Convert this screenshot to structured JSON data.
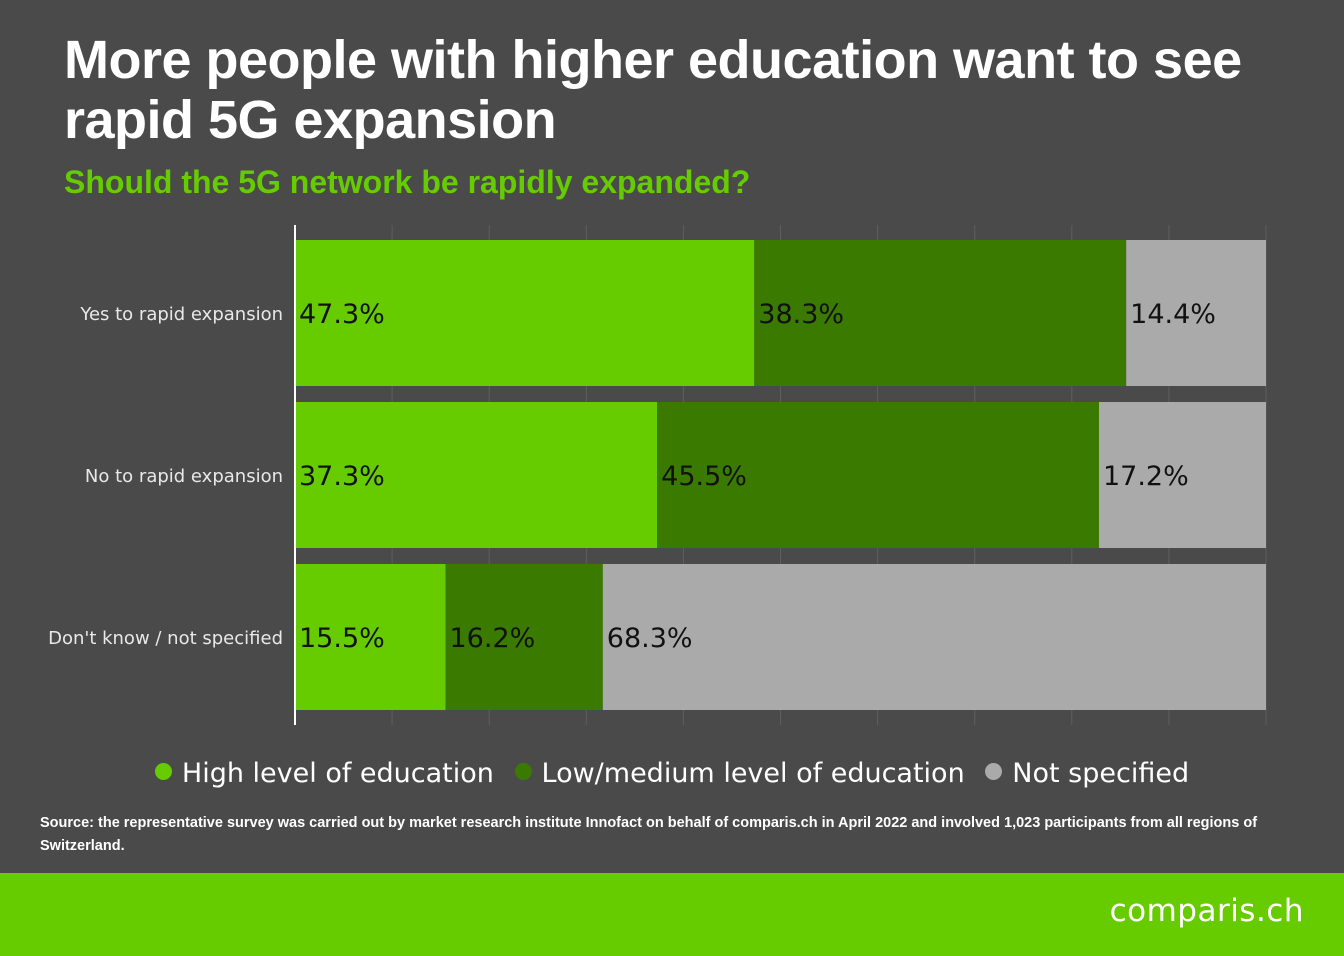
{
  "title": "More people with higher education want to see rapid 5G expansion",
  "subtitle": "Should the 5G network be rapidly expanded?",
  "colors": {
    "background": "#4a4a4a",
    "accent": "#66cc00",
    "high": "#66cc00",
    "low": "#3b7a00",
    "not_specified": "#aaaaaa"
  },
  "chart_data": {
    "type": "bar",
    "orientation": "horizontal",
    "stacked": true,
    "percent_stacked": true,
    "categories": [
      "Yes to rapid expansion",
      "No to rapid expansion",
      "Don't know / not specified"
    ],
    "series": [
      {
        "name": "High level of education",
        "color": "#66cc00",
        "values": [
          47.3,
          37.3,
          15.5
        ],
        "labels": [
          "47.3%",
          "37.3%",
          "15.5%"
        ]
      },
      {
        "name": "Low/medium level of education",
        "color": "#3b7a00",
        "values": [
          38.3,
          45.5,
          16.2
        ],
        "labels": [
          "38.3%",
          "45.5%",
          "16.2%"
        ]
      },
      {
        "name": "Not specified",
        "color": "#aaaaaa",
        "values": [
          14.4,
          17.2,
          68.3
        ],
        "labels": [
          "14.4%",
          "17.2%",
          "68.3%"
        ]
      }
    ],
    "xlim": [
      0,
      100
    ],
    "grid": true,
    "legend_position": "bottom"
  },
  "legend": {
    "items": [
      {
        "label": "High level of education",
        "color": "#66cc00"
      },
      {
        "label": "Low/medium level of education",
        "color": "#3b7a00"
      },
      {
        "label": "Not specified",
        "color": "#aaaaaa"
      }
    ]
  },
  "source": "Source: the representative survey was carried out by market research institute Innofact on behalf of comparis.ch in April 2022 and involved 1,023 participants from all regions of Switzerland.",
  "footer": {
    "brand": "comparis.ch"
  }
}
